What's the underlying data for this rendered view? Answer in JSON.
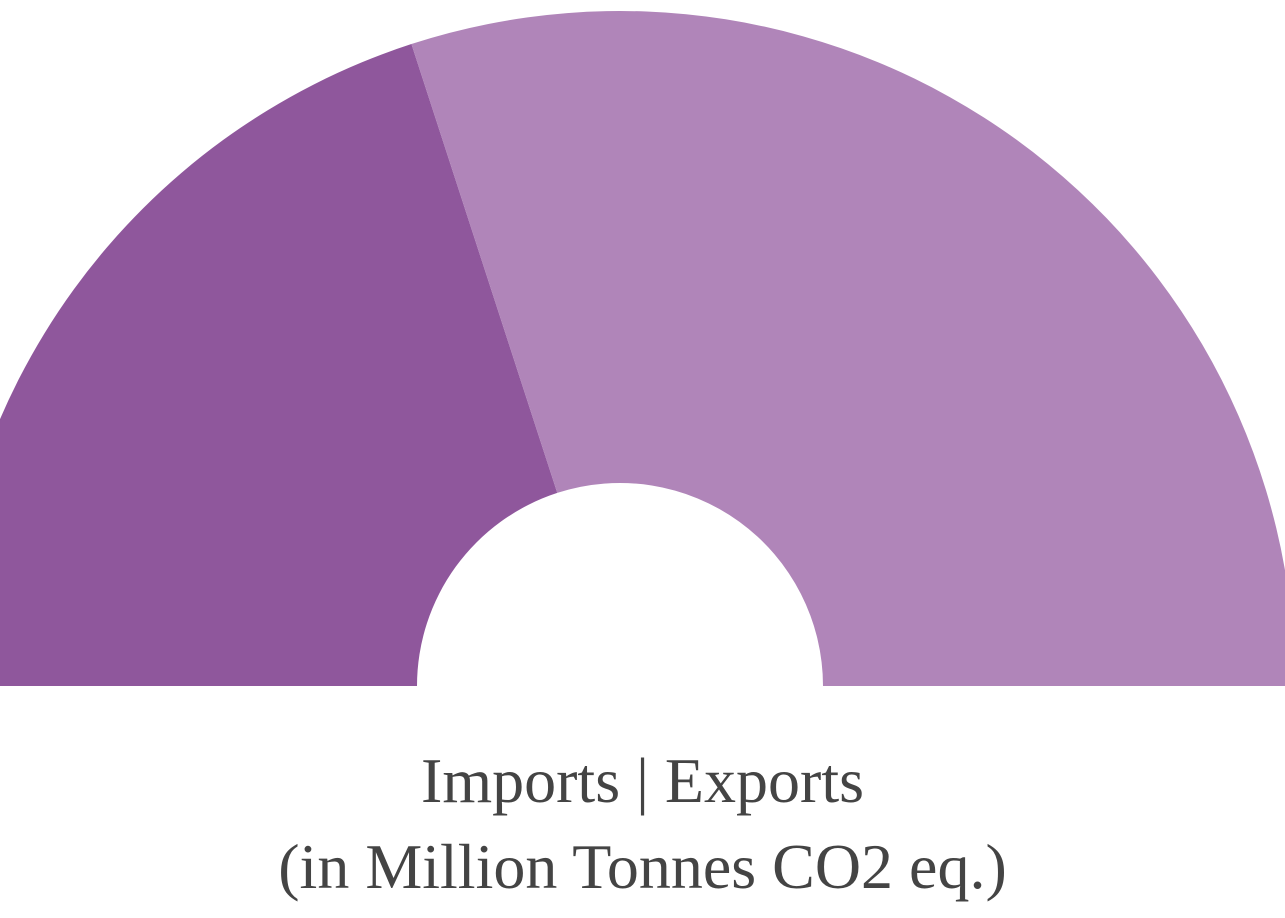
{
  "chart_data": {
    "type": "pie",
    "variant": "half-donut",
    "caption_line1": "Imports | Exports",
    "caption_line2": "(in Million Tonnes CO2 eq.)",
    "slices": [
      {
        "category": "Imports",
        "share": 0.4,
        "color": "#8f579c"
      },
      {
        "category": "Exports",
        "share": 0.6,
        "color": "#b085b9"
      }
    ]
  }
}
